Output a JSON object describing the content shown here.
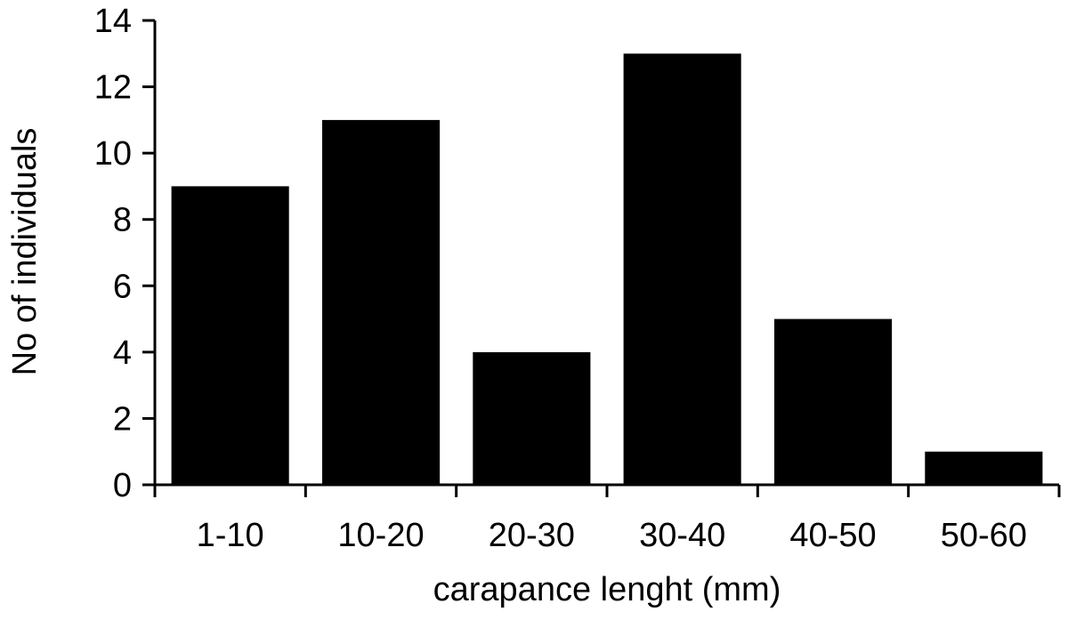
{
  "chart_data": {
    "type": "bar",
    "title": "",
    "xlabel": "carapance lenght (mm)",
    "ylabel": "No of individuals",
    "categories": [
      "1-10",
      "10-20",
      "20-30",
      "30-40",
      "40-50",
      "50-60"
    ],
    "values": [
      9,
      11,
      4,
      13,
      5,
      1
    ],
    "ylim": [
      0,
      14
    ],
    "yticks": [
      "0",
      "2",
      "4",
      "6",
      "8",
      "10",
      "12",
      "14"
    ],
    "grid": false,
    "legend": "none",
    "colors": {
      "bar": "#000000",
      "axis": "#000000",
      "background": "#ffffff"
    }
  }
}
